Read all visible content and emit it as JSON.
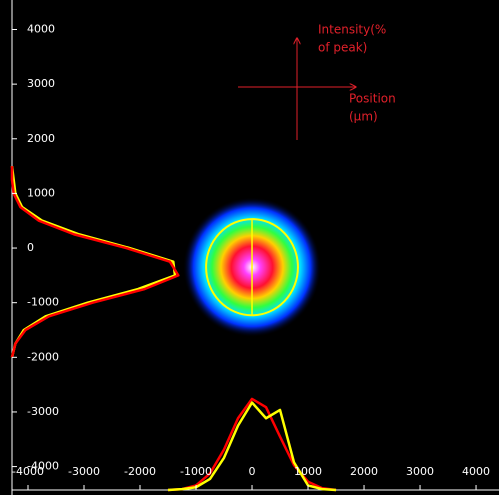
{
  "chart_data": {
    "type": "beam-profile",
    "annotations": {
      "intensity": [
        "Intensity(%",
        "of peak)"
      ],
      "position": [
        "Position",
        "(µm)"
      ]
    },
    "xlim": [
      -4500,
      4410
    ],
    "ylim": [
      -4520,
      4540
    ],
    "xticks": [
      -4000,
      -3000,
      -2000,
      -1000,
      0,
      1000,
      2000,
      3000,
      4000
    ],
    "yticks": [
      4000,
      3000,
      2000,
      1000,
      0,
      -1000,
      -2000,
      -3000,
      -4000
    ],
    "beam": {
      "x": 0,
      "y": -350,
      "rx": 820,
      "ry": 880,
      "color": "#ffff00"
    },
    "x_profile": {
      "positions": [
        -1500,
        -1250,
        -1000,
        -750,
        -500,
        -250,
        0,
        250,
        500,
        750,
        1000,
        1250,
        1500
      ],
      "series": [
        {
          "color": "#ff0000",
          "values": [
            0,
            1,
            5,
            18,
            44,
            78,
            99,
            90,
            58,
            27,
            9,
            2,
            0
          ]
        },
        {
          "color": "#ffff00",
          "values": [
            0,
            1,
            3,
            12,
            35,
            70,
            95,
            78,
            87,
            30,
            5,
            1,
            0
          ]
        }
      ]
    },
    "y_profile": {
      "positions": [
        -2000,
        -1750,
        -1500,
        -1250,
        -1000,
        -750,
        -500,
        -250,
        0,
        250,
        500,
        750,
        1000,
        1250,
        1500
      ],
      "series": [
        {
          "color": "#ffff00",
          "values": [
            0,
            2,
            7,
            20,
            45,
            75,
            97,
            96,
            70,
            40,
            18,
            6,
            2,
            1,
            0
          ]
        },
        {
          "color": "#ff0000",
          "values": [
            0,
            2,
            8,
            22,
            48,
            79,
            99,
            94,
            68,
            37,
            16,
            5,
            1,
            0,
            0
          ]
        }
      ]
    }
  }
}
